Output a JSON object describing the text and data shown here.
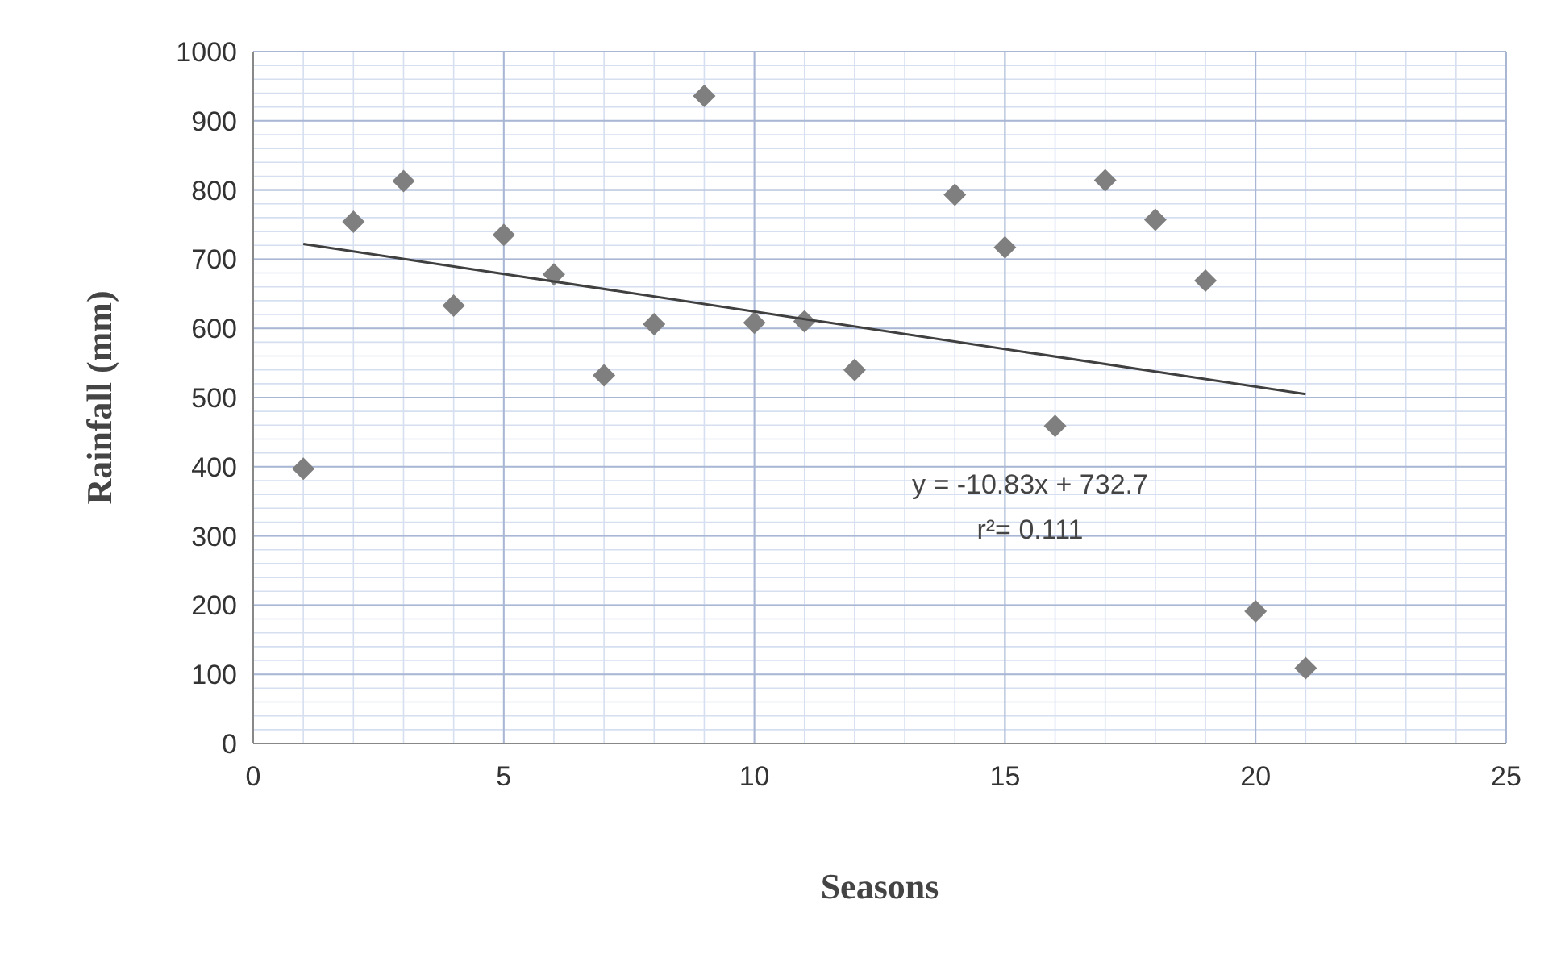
{
  "chart_data": {
    "type": "scatter",
    "xlabel": "Seasons",
    "ylabel": "Rainfall (mm)",
    "xlim": [
      0,
      25
    ],
    "xticks": [
      0,
      5,
      10,
      15,
      20,
      25
    ],
    "ylim": [
      0,
      1000
    ],
    "yticks": [
      0,
      100,
      200,
      300,
      400,
      500,
      600,
      700,
      800,
      900,
      1000
    ],
    "grid": true,
    "series": [
      {
        "marker": "diamond",
        "color": "#7f7f7f",
        "x": [
          1,
          2,
          3,
          4,
          5,
          6,
          7,
          8,
          9,
          10,
          11,
          12,
          14,
          15,
          16,
          17,
          18,
          19,
          20,
          21
        ],
        "values": [
          397,
          754,
          813,
          633,
          735,
          678,
          532,
          606,
          936,
          608,
          610,
          540,
          793,
          717,
          459,
          814,
          757,
          669,
          191,
          109
        ]
      },
      {
        "type": "line",
        "color": "#404040",
        "x": [
          1,
          21
        ],
        "values": [
          722,
          505
        ]
      }
    ],
    "annotations": [
      "y = -10.83x + 732.7",
      "r²= 0.111"
    ]
  }
}
